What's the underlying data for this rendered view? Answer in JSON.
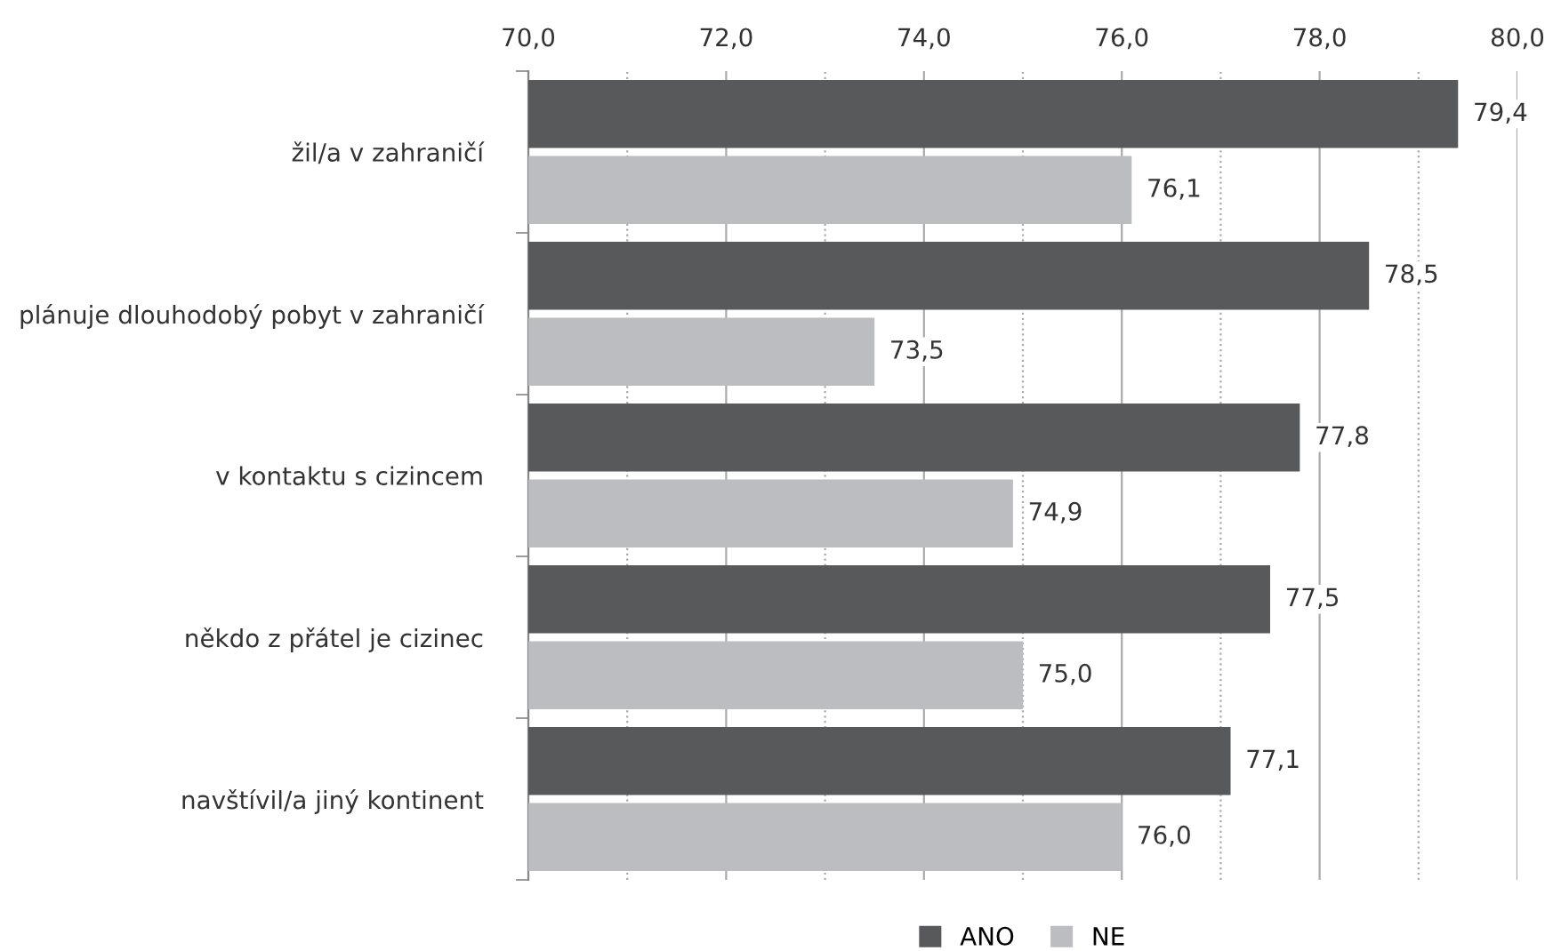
{
  "chart_data": {
    "type": "bar",
    "orientation": "horizontal",
    "categories": [
      "žil/a v zahraničí",
      "plánuje dlouhodobý pobyt v zahraničí",
      "v kontaktu s cizincem",
      "někdo z přátel je cizinec",
      "navštívil/a jiný kontinent"
    ],
    "series": [
      {
        "name": "ANO",
        "color": "#58595b",
        "values": [
          79.4,
          78.5,
          77.8,
          77.5,
          77.1
        ],
        "value_labels": [
          "79,4",
          "78,5",
          "77,8",
          "77,5",
          "77,1"
        ]
      },
      {
        "name": "NE",
        "color": "#bcbdc0",
        "values": [
          76.1,
          73.5,
          74.9,
          75.0,
          76.0
        ],
        "value_labels": [
          "76,1",
          "73,5",
          "74,9",
          "75,0",
          "76,0"
        ]
      }
    ],
    "xlim": [
      70,
      80
    ],
    "xticks": [
      {
        "value": 70,
        "label": "70,0"
      },
      {
        "value": 71,
        "label": null
      },
      {
        "value": 72,
        "label": "72,0"
      },
      {
        "value": 73,
        "label": null
      },
      {
        "value": 74,
        "label": "74,0"
      },
      {
        "value": 75,
        "label": null
      },
      {
        "value": 76,
        "label": "76,0"
      },
      {
        "value": 77,
        "label": null
      },
      {
        "value": 78,
        "label": "78,0"
      },
      {
        "value": 79,
        "label": null
      },
      {
        "value": 80,
        "label": "80,0"
      }
    ],
    "grid": "x",
    "legend": "bottom"
  }
}
